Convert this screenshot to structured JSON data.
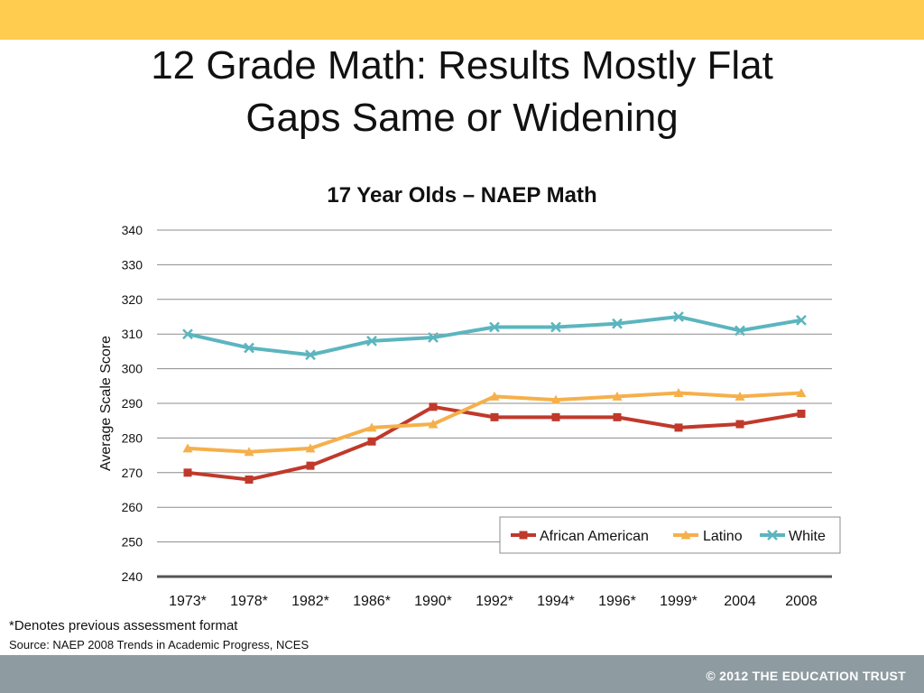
{
  "slide": {
    "title_line1": "12 Grade Math:  Results Mostly Flat",
    "title_line2": "Gaps Same or Widening",
    "footnote": "*Denotes previous assessment format",
    "source": "Source: NAEP 2008 Trends in Academic Progress, NCES",
    "copyright": "© 2012 THE EDUCATION TRUST",
    "colors": {
      "top_band": "#FFCC4F",
      "bottom_band": "#8E9BA1"
    }
  },
  "chart_data": {
    "type": "line",
    "title": "17 Year Olds – NAEP Math",
    "xlabel": "",
    "ylabel": "Average Scale Score",
    "ylim": [
      240,
      340
    ],
    "yticks": [
      240,
      250,
      260,
      270,
      280,
      290,
      300,
      310,
      320,
      330,
      340
    ],
    "grid": true,
    "legend_position": "bottom-right",
    "categories": [
      "1973*",
      "1978*",
      "1982*",
      "1986*",
      "1990*",
      "1992*",
      "1994*",
      "1996*",
      "1999*",
      "2004",
      "2008"
    ],
    "series": [
      {
        "name": "African American",
        "color": "#C0392B",
        "marker": "square",
        "values": [
          270,
          268,
          272,
          279,
          289,
          286,
          286,
          286,
          283,
          284,
          287
        ]
      },
      {
        "name": "Latino",
        "color": "#F5B04B",
        "marker": "triangle",
        "values": [
          277,
          276,
          277,
          283,
          284,
          292,
          291,
          292,
          293,
          292,
          293
        ]
      },
      {
        "name": "White",
        "color": "#5BB5BF",
        "marker": "x",
        "values": [
          310,
          306,
          304,
          308,
          309,
          312,
          312,
          313,
          315,
          311,
          314
        ]
      }
    ]
  }
}
